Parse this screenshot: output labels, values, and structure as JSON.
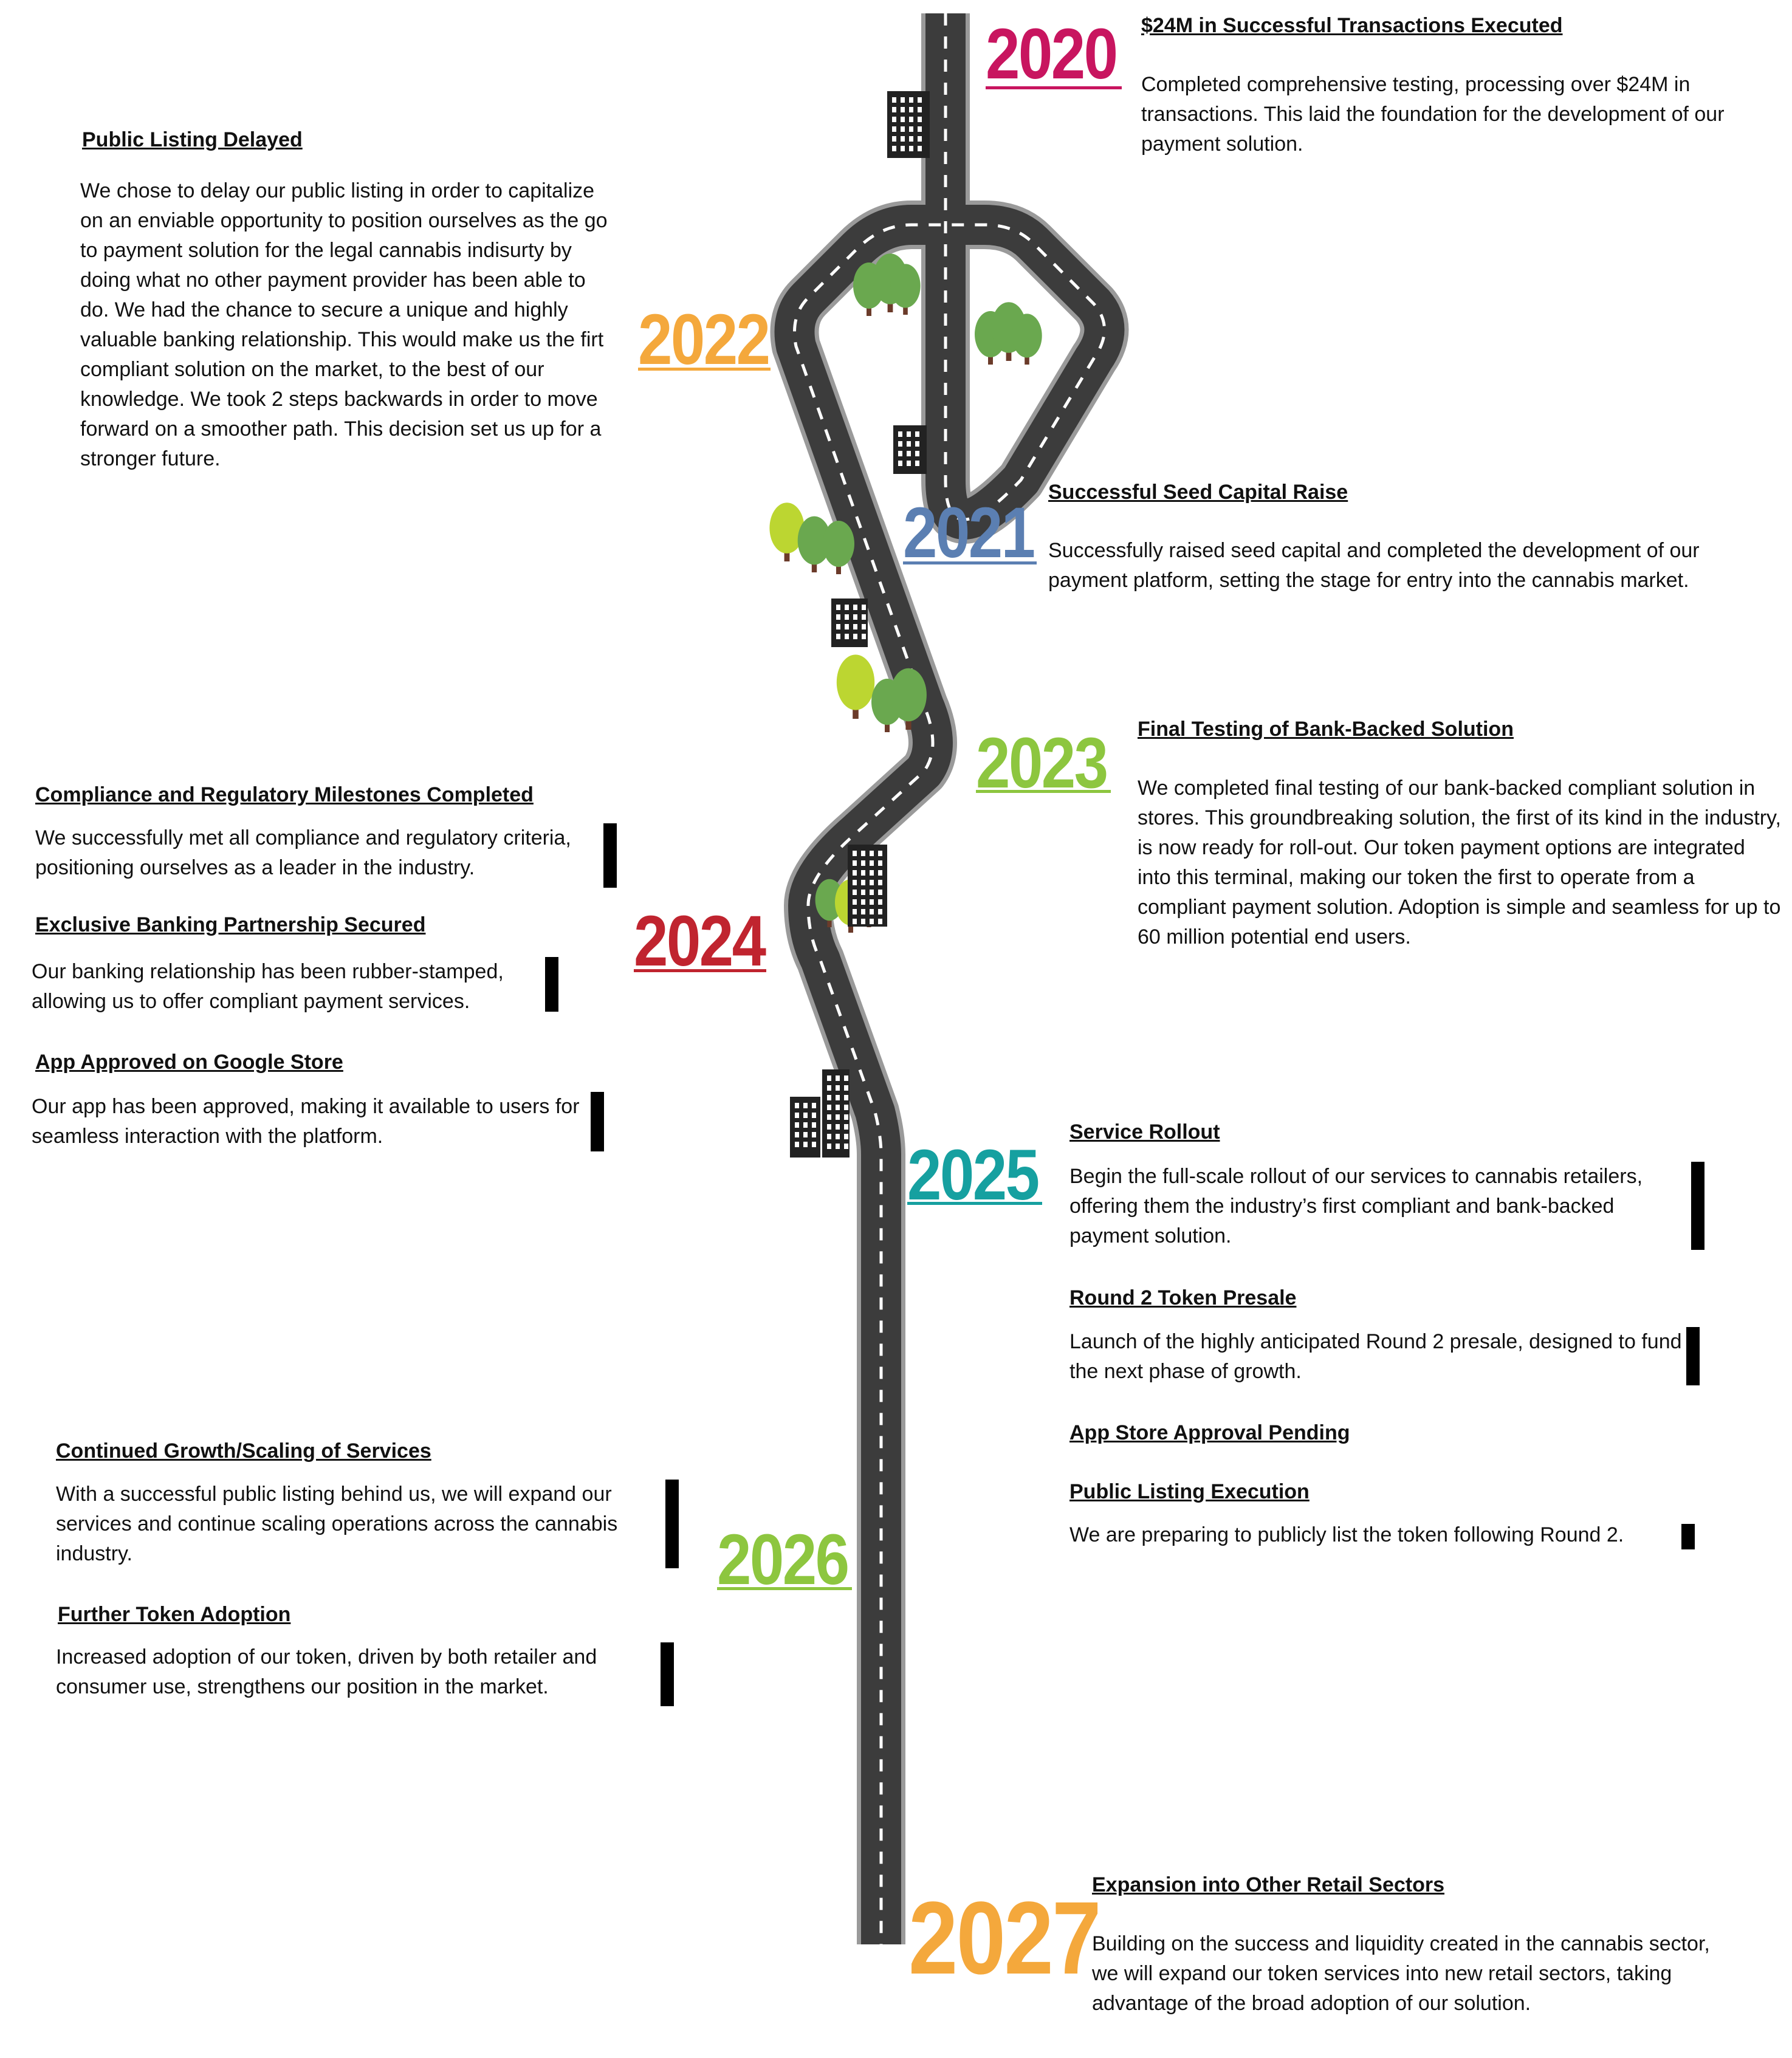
{
  "colors": {
    "road": "#3c3c3c",
    "road_edge": "#9a9a9a",
    "lane_marking": "#ffffff",
    "y2020": "#c8155f",
    "y2021": "#5b7fb2",
    "y2022": "#f4a83c",
    "y2023": "#8dc63f",
    "y2024": "#c0242f",
    "y2025": "#16a0a0",
    "y2026": "#8dc63f",
    "y2027": "#f4a83c",
    "tree_green": "#6aa84f",
    "tree_lime": "#bcd631",
    "trunk": "#6b3b2a",
    "building": "#222222"
  },
  "icons": [
    "building-icon",
    "tree-icon"
  ],
  "years": {
    "y2020": "2020",
    "y2021": "2021",
    "y2022": "2022",
    "y2023": "2023",
    "y2024": "2024",
    "y2025": "2025",
    "y2026": "2026",
    "y2027": "2027"
  },
  "milestones": {
    "m2020": {
      "heading": "$24M in Successful Transactions Executed",
      "body": "Completed comprehensive testing, processing over $24M in transactions. This laid the foundation for the development of our payment solution."
    },
    "m2022": {
      "heading": "Public Listing Delayed",
      "body": "We chose to delay our public listing in order to capitalize on an enviable opportunity to position ourselves as the go to payment solution for the legal cannabis indisurty by doing what no other payment provider has been able to do. We had the chance to secure a unique and highly valuable banking relationship. This would make us the firt compliant solution on the market, to the best of our knowledge. We took 2 steps backwards in order to move forward on a smoother path. This decision set us up for a stronger future."
    },
    "m2021": {
      "heading": "Successful Seed Capital Raise",
      "body": "Successfully raised seed capital and completed the development of our payment platform, setting the stage for entry into the cannabis market."
    },
    "m2023": {
      "heading": "Final Testing of Bank-Backed Solution",
      "body": "We completed final testing of our bank-backed compliant solution in stores. This groundbreaking solution, the first of its kind in the industry, is now ready for roll-out. Our token payment options are integrated into this terminal, making our token the first to operate from a compliant payment solution. Adoption is simple and seamless for up to 60 million potential end users."
    },
    "m2024a": {
      "heading": "Compliance and Regulatory Milestones Completed",
      "body": "We successfully met all compliance and regulatory criteria, positioning ourselves as a leader in the industry."
    },
    "m2024b": {
      "heading": "Exclusive Banking Partnership Secured",
      "body": "Our banking relationship has been rubber-stamped, allowing us to offer compliant payment services."
    },
    "m2024c": {
      "heading": "App Approved on Google Store",
      "body": "Our app has been approved, making it available to users for seamless interaction with the platform."
    },
    "m2025a": {
      "heading": "Service Rollout",
      "body": "Begin the full-scale rollout of our services to cannabis retailers, offering them the industry’s first compliant and bank-backed payment solution."
    },
    "m2025b": {
      "heading": "Round 2 Token Presale",
      "body": "Launch of the highly anticipated Round 2 presale, designed to fund the next phase of growth."
    },
    "m2025c": {
      "heading": "App Store Approval Pending"
    },
    "m2025d": {
      "heading": "Public Listing Execution",
      "body": "We are preparing to publicly list the token following Round 2."
    },
    "m2026a": {
      "heading": "Continued Growth/Scaling of Services",
      "body": "With a successful public listing behind us, we will expand our services and continue scaling operations across the cannabis industry."
    },
    "m2026b": {
      "heading": "Further Token Adoption",
      "body": "Increased adoption of our token, driven by both retailer and consumer use, strengthens our position in the market."
    },
    "m2027": {
      "heading": "Expansion into Other Retail Sectors",
      "body": "Building on the success and liquidity created in the cannabis sector, we will expand our token services into new retail sectors, taking advantage of the broad adoption of our solution."
    }
  }
}
